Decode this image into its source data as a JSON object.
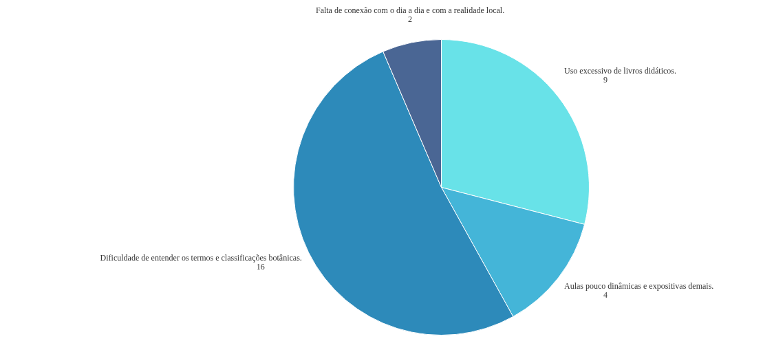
{
  "chart_data": {
    "type": "pie",
    "categories": [
      "Uso excessivo de livros didáticos.",
      "Aulas pouco dinâmicas e expositivas demais.",
      "Dificuldade de entender os termos e classificações botânicas.",
      "Falta de conexão com o dia a dia e com a realidade local."
    ],
    "values": [
      9,
      4,
      16,
      2
    ],
    "colors": [
      "#68e2e8",
      "#44b5d8",
      "#2d8aba",
      "#4a6694"
    ],
    "data_labels": true
  }
}
